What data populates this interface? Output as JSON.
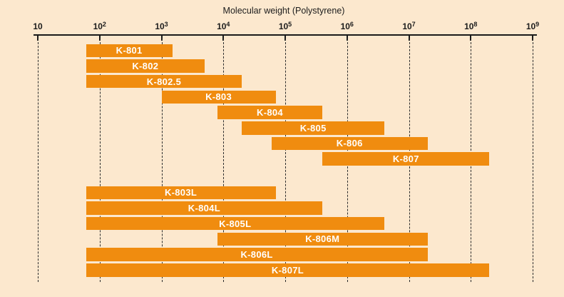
{
  "title": "Molecular weight (Polystyrene)",
  "colors": {
    "background": "#FCE8CE",
    "bar": "#F08C0F",
    "bar_label_text": "#FFFFFF",
    "axis": "#1A1A1A",
    "gridline": "#2E2E2E",
    "text": "#1C1C1C"
  },
  "chart_data": {
    "type": "bar",
    "orientation": "horizontal-range",
    "title": "Molecular weight (Polystyrene)",
    "x_scale": "log10",
    "xlim": [
      10,
      1000000000
    ],
    "x_ticks": [
      "10",
      "10^2",
      "10^3",
      "10^4",
      "10^5",
      "10^6",
      "10^7",
      "10^8",
      "10^9"
    ],
    "grid": "vertical-dashed-per-decade",
    "legend": "none",
    "groups": [
      {
        "name": "conventional-columns",
        "columns": [
          {
            "label": "K-801",
            "mw_min": 60,
            "mw_max": 1500
          },
          {
            "label": "K-802",
            "mw_min": 60,
            "mw_max": 5000
          },
          {
            "label": "K-802.5",
            "mw_min": 60,
            "mw_max": 20000
          },
          {
            "label": "K-803",
            "mw_min": 1000,
            "mw_max": 70000
          },
          {
            "label": "K-804",
            "mw_min": 8000,
            "mw_max": 400000
          },
          {
            "label": "K-805",
            "mw_min": 20000,
            "mw_max": 4000000
          },
          {
            "label": "K-806",
            "mw_min": 60000,
            "mw_max": 20000000
          },
          {
            "label": "K-807",
            "mw_min": 400000,
            "mw_max": 200000000
          }
        ]
      },
      {
        "name": "linear-columns",
        "columns": [
          {
            "label": "K-803L",
            "mw_min": 60,
            "mw_max": 70000
          },
          {
            "label": "K-804L",
            "mw_min": 60,
            "mw_max": 400000
          },
          {
            "label": "K-805L",
            "mw_min": 60,
            "mw_max": 4000000
          },
          {
            "label": "K-806M",
            "mw_min": 8000,
            "mw_max": 20000000
          },
          {
            "label": "K-806L",
            "mw_min": 60,
            "mw_max": 20000000
          },
          {
            "label": "K-807L",
            "mw_min": 60,
            "mw_max": 200000000
          }
        ]
      }
    ]
  }
}
